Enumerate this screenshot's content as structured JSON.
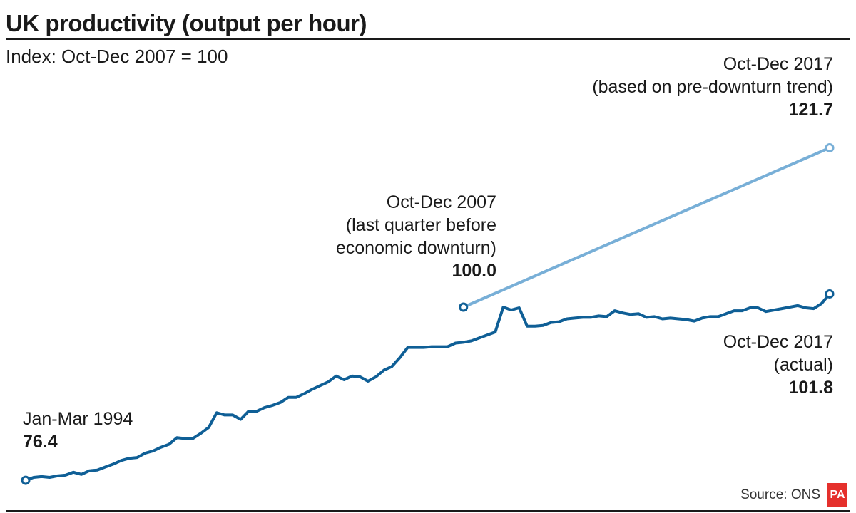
{
  "header": {
    "title": "UK productivity (output per hour)",
    "subtitle": "Index: Oct-Dec 2007 = 100"
  },
  "annotations": {
    "start": {
      "label": "Jan-Mar 1994",
      "value": "76.4"
    },
    "peak": {
      "line1": "Oct-Dec 2007",
      "line2": "(last quarter before",
      "line3": "economic downturn)",
      "value": "100.0"
    },
    "trend_end": {
      "line1": "Oct-Dec 2017",
      "line2": "(based on pre-downturn trend)",
      "value": "121.7"
    },
    "actual_end": {
      "line1": "Oct-Dec 2017",
      "line2": "(actual)",
      "value": "101.8"
    }
  },
  "footer": {
    "source": "Source: ONS",
    "logo": "PA"
  },
  "colors": {
    "actual": "#0f5f96",
    "trend": "#78afd7"
  },
  "chart_data": {
    "type": "line",
    "x_start": "1994 Q1",
    "x_end": "2017 Q4",
    "ylim": [
      74,
      124
    ],
    "grid": false,
    "series": [
      {
        "values": [
          76.4,
          76.8,
          76.9,
          76.8,
          77.0,
          77.1,
          77.5,
          77.2,
          77.7,
          77.8,
          78.2,
          78.6,
          79.1,
          79.4,
          79.5,
          80.1,
          80.4,
          80.9,
          81.3,
          82.2,
          82.1,
          82.1,
          82.8,
          83.6,
          85.6,
          85.3,
          85.3,
          84.7,
          85.8,
          85.8,
          86.3,
          86.6,
          87.0,
          87.7,
          87.7,
          88.2,
          88.8,
          89.3,
          89.8,
          90.6,
          90.1,
          90.6,
          90.5,
          89.9,
          90.5,
          91.4,
          91.9,
          93.1,
          94.5,
          94.5,
          94.5,
          94.6,
          94.6,
          94.6,
          95.1,
          95.2,
          95.4,
          95.8,
          96.2,
          96.6,
          100.0,
          99.6,
          99.9,
          97.4,
          97.4,
          97.5,
          97.9,
          98.0,
          98.4,
          98.5,
          98.6,
          98.6,
          98.8,
          98.7,
          99.5,
          99.2,
          99.0,
          99.1,
          98.6,
          98.7,
          98.4,
          98.5,
          98.4,
          98.3,
          98.1,
          98.5,
          98.7,
          98.7,
          99.1,
          99.5,
          99.5,
          99.9,
          99.9,
          99.4,
          99.6,
          99.8,
          100.0,
          100.2,
          99.9,
          99.8,
          100.5,
          101.8
        ]
      },
      {
        "values": [
          100.0,
          121.7
        ]
      }
    ]
  }
}
